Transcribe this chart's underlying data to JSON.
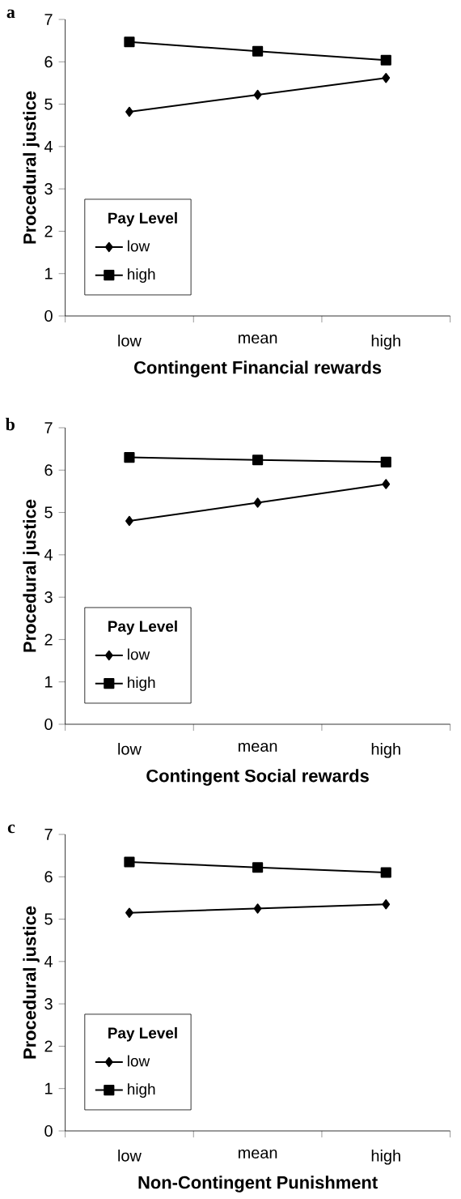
{
  "chart_data": [
    {
      "type": "line",
      "title": "a",
      "xlabel": "Contingent Financial  rewards",
      "ylabel": "Procedural justice",
      "legend_title": "Pay Level",
      "legend": "bottom left",
      "categories": [
        "low",
        "mean",
        "high"
      ],
      "ylim": [
        0,
        7
      ],
      "yticks": [
        0,
        1,
        2,
        3,
        4,
        5,
        6,
        7
      ],
      "series": [
        {
          "name": "low",
          "color": "#000000",
          "marker": "diamond",
          "values": [
            4.82,
            5.22,
            5.62
          ]
        },
        {
          "name": "high",
          "color": "#000000",
          "marker": "square",
          "values": [
            6.47,
            6.25,
            6.04
          ]
        }
      ]
    },
    {
      "type": "line",
      "title": "b",
      "xlabel": "Contingent Social rewards",
      "ylabel": "Procedural justice",
      "legend_title": "Pay Level",
      "legend": "bottom left",
      "categories": [
        "low",
        "mean",
        "high"
      ],
      "ylim": [
        0,
        7
      ],
      "yticks": [
        0,
        1,
        2,
        3,
        4,
        5,
        6,
        7
      ],
      "series": [
        {
          "name": "low",
          "color": "#000000",
          "marker": "diamond",
          "values": [
            4.8,
            5.23,
            5.67
          ]
        },
        {
          "name": "high",
          "color": "#000000",
          "marker": "square",
          "values": [
            6.3,
            6.24,
            6.19
          ]
        }
      ]
    },
    {
      "type": "line",
      "title": "c",
      "xlabel": "Non-Contingent Punishment",
      "ylabel": "Procedural justice",
      "legend_title": "Pay Level",
      "legend": "bottom left",
      "categories": [
        "low",
        "mean",
        "high"
      ],
      "ylim": [
        0,
        7
      ],
      "yticks": [
        0,
        1,
        2,
        3,
        4,
        5,
        6,
        7
      ],
      "series": [
        {
          "name": "low",
          "color": "#000000",
          "marker": "diamond",
          "values": [
            5.15,
            5.25,
            5.35
          ]
        },
        {
          "name": "high",
          "color": "#000000",
          "marker": "square",
          "values": [
            6.35,
            6.22,
            6.1
          ]
        }
      ]
    }
  ]
}
